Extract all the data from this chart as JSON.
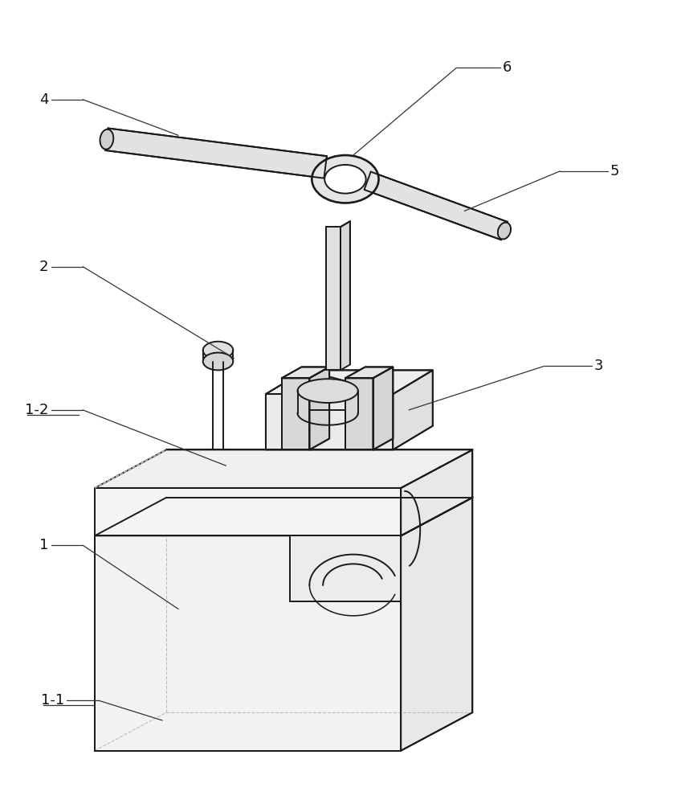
{
  "bg_color": "#ffffff",
  "line_color": "#1a1a1a",
  "line_width": 1.4,
  "label_color": "#111111",
  "label_fontsize": 13,
  "ann_color": "#333333",
  "ann_lw": 0.9,
  "figure_width": 8.43,
  "figure_height": 10.0,
  "dpi": 100
}
